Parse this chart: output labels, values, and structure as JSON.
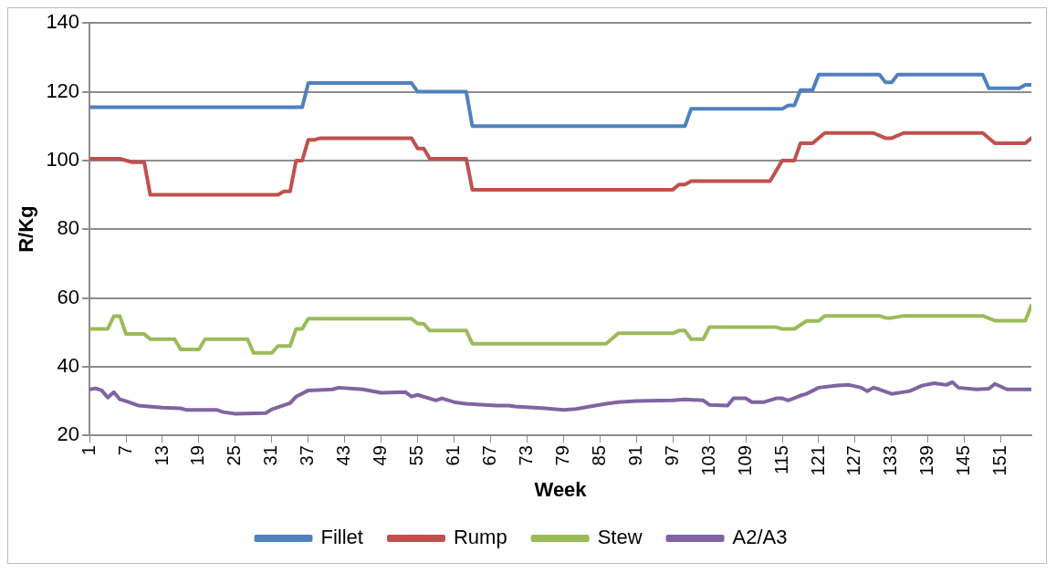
{
  "chart_data": {
    "type": "line",
    "xlabel": "Week",
    "ylabel": "R/Kg",
    "xlim": [
      1,
      156
    ],
    "xticks": [
      1,
      7,
      13,
      19,
      25,
      31,
      37,
      43,
      49,
      55,
      61,
      67,
      73,
      79,
      85,
      91,
      97,
      103,
      109,
      115,
      121,
      127,
      133,
      139,
      145,
      151
    ],
    "ylim": [
      20,
      140
    ],
    "yticks": [
      20,
      40,
      60,
      80,
      100,
      120,
      140
    ],
    "grid": "y",
    "legend": "bottom",
    "marker": "none",
    "line_style": "solid",
    "series": [
      {
        "name": "Fillet",
        "color": "#4f81bd",
        "x": [
          1,
          36,
          37,
          54,
          55,
          63,
          64,
          99,
          100,
          115,
          116,
          117,
          118,
          120,
          121,
          131,
          132,
          133,
          134,
          148,
          149,
          154,
          155,
          156
        ],
        "values": [
          115.5,
          115.5,
          122.5,
          122.5,
          120,
          120,
          110,
          110,
          115,
          115,
          116,
          116,
          120.5,
          120.5,
          125,
          125,
          122.7,
          122.7,
          125,
          125,
          121,
          121,
          122,
          122
        ]
      },
      {
        "name": "Rump",
        "color": "#c0504d",
        "x": [
          1,
          6,
          8,
          10,
          11,
          32,
          33,
          34,
          35,
          36,
          37,
          38,
          39,
          54,
          55,
          56,
          57,
          63,
          64,
          97,
          98,
          99,
          100,
          113,
          115,
          117,
          118,
          120,
          122,
          130,
          132,
          133,
          135,
          148,
          150,
          155,
          156
        ],
        "values": [
          100.5,
          100.5,
          99.5,
          99.5,
          90,
          90,
          91,
          91,
          100,
          100,
          106,
          106,
          106.5,
          106.5,
          103.5,
          103.5,
          100.5,
          100.5,
          91.5,
          91.5,
          93,
          93,
          94,
          94,
          100,
          100,
          105,
          105,
          108,
          108,
          106.5,
          106.5,
          108,
          108,
          105,
          105,
          106.5
        ]
      },
      {
        "name": "Stew",
        "color": "#9bbb59",
        "x": [
          1,
          4,
          5,
          6,
          7,
          10,
          11,
          15,
          16,
          19,
          20,
          27,
          28,
          31,
          32,
          34,
          35,
          36,
          37,
          54,
          55,
          56,
          57,
          63,
          64,
          86,
          88,
          97,
          98,
          99,
          100,
          102,
          103,
          114,
          115,
          117,
          119,
          121,
          122,
          131,
          132,
          133,
          135,
          148,
          150,
          155,
          156
        ],
        "values": [
          51,
          51,
          54.7,
          54.7,
          49.5,
          49.5,
          48,
          48,
          45,
          45,
          48,
          48,
          44,
          44,
          46,
          46,
          51,
          51,
          54,
          54,
          52.5,
          52.5,
          50.5,
          50.5,
          46.7,
          46.7,
          49.7,
          49.7,
          50.5,
          50.5,
          48,
          48,
          51.5,
          51.5,
          51,
          51,
          53.3,
          53.3,
          54.8,
          54.8,
          54.2,
          54.2,
          54.8,
          54.8,
          53.4,
          53.4,
          57.8
        ]
      },
      {
        "name": "A2/A3",
        "color": "#8064a2",
        "x": [
          1,
          2,
          3,
          4,
          5,
          6,
          7,
          9,
          13,
          16,
          17,
          22,
          23,
          25,
          30,
          31,
          34,
          35,
          37,
          41,
          42,
          46,
          49,
          53,
          54,
          55,
          58,
          59,
          61,
          63,
          66,
          68,
          70,
          71,
          76,
          79,
          81,
          86,
          88,
          91,
          97,
          99,
          102,
          103,
          106,
          107,
          109,
          110,
          112,
          114,
          115,
          116,
          118,
          119,
          121,
          124,
          126,
          128,
          129,
          130,
          131,
          133,
          136,
          138,
          140,
          142,
          143,
          144,
          147,
          149,
          150,
          152,
          156
        ],
        "values": [
          33.4,
          33.7,
          33.1,
          31,
          32.6,
          30.5,
          30,
          28.7,
          28.1,
          27.9,
          27.4,
          27.4,
          26.8,
          26.3,
          26.5,
          27.6,
          29.4,
          31.3,
          33.1,
          33.4,
          33.9,
          33.4,
          32.4,
          32.6,
          31.3,
          31.8,
          30.2,
          30.8,
          29.7,
          29.2,
          28.9,
          28.7,
          28.7,
          28.4,
          27.9,
          27.4,
          27.7,
          29.2,
          29.7,
          30,
          30.2,
          30.5,
          30.2,
          28.9,
          28.7,
          30.8,
          30.8,
          29.7,
          29.7,
          30.8,
          30.8,
          30.2,
          31.6,
          32.1,
          33.9,
          34.5,
          34.7,
          33.9,
          32.9,
          33.9,
          33.4,
          32.1,
          32.9,
          34.5,
          35.2,
          34.7,
          35.5,
          33.9,
          33.4,
          33.6,
          35,
          33.4,
          33.4
        ]
      }
    ]
  }
}
